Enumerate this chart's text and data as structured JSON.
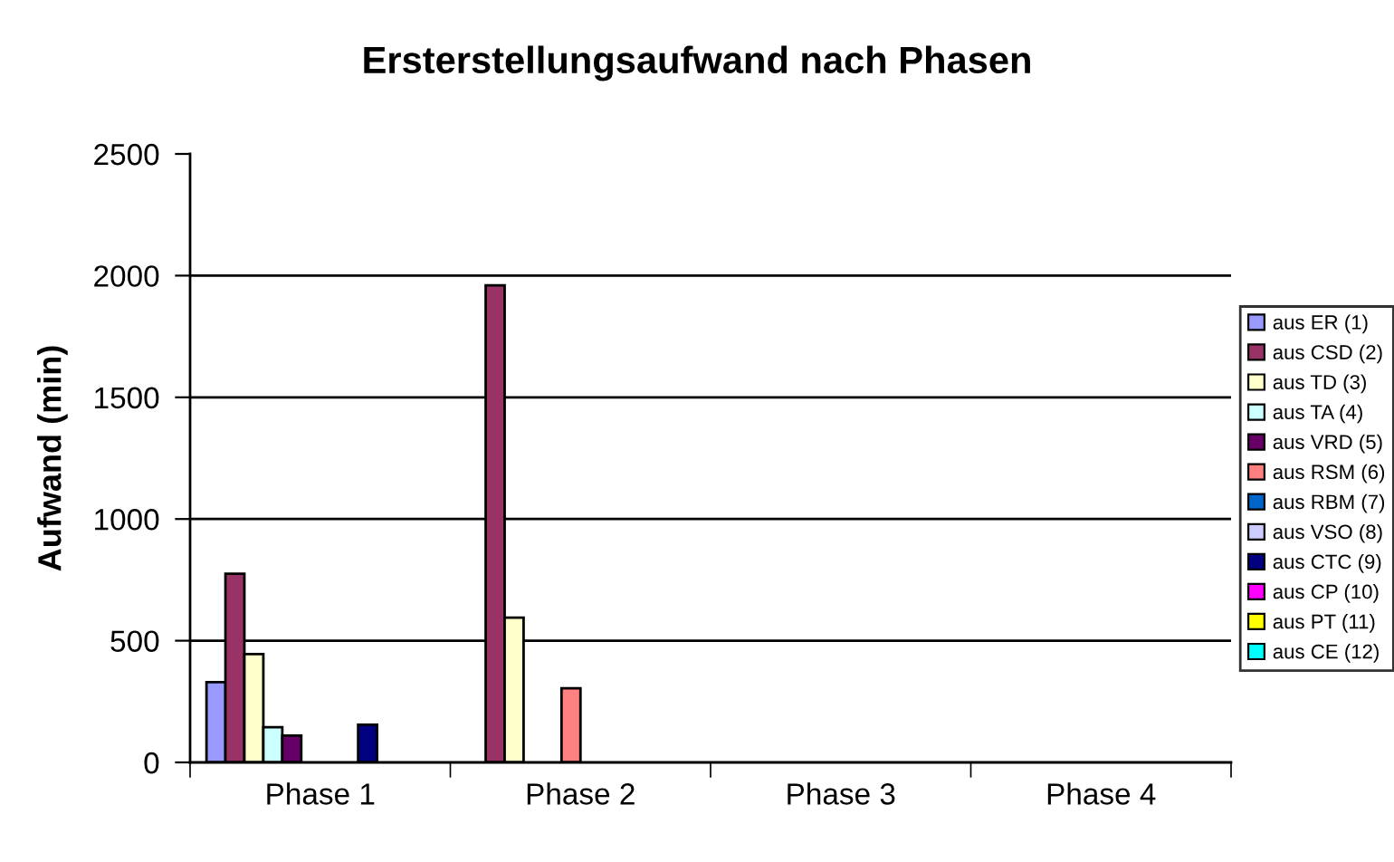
{
  "chart_data": {
    "type": "bar",
    "title": "Ersterstellungsaufwand nach Phasen",
    "ylabel": "Aufwand (min)",
    "categories": [
      "Phase 1",
      "Phase 2",
      "Phase 3",
      "Phase 4"
    ],
    "series": [
      {
        "name": "aus ER (1)",
        "color": "#9999ff",
        "values": [
          330,
          null,
          null,
          null
        ]
      },
      {
        "name": "aus CSD (2)",
        "color": "#993366",
        "values": [
          775,
          1960,
          null,
          null
        ]
      },
      {
        "name": "aus TD (3)",
        "color": "#ffffcc",
        "values": [
          445,
          595,
          null,
          null
        ]
      },
      {
        "name": "aus TA (4)",
        "color": "#ccffff",
        "values": [
          145,
          null,
          null,
          null
        ]
      },
      {
        "name": "aus VRD (5)",
        "color": "#660066",
        "values": [
          110,
          null,
          null,
          null
        ]
      },
      {
        "name": "aus RSM (6)",
        "color": "#ff8080",
        "values": [
          null,
          305,
          null,
          null
        ]
      },
      {
        "name": "aus RBM (7)",
        "color": "#0066cc",
        "values": [
          null,
          null,
          null,
          null
        ]
      },
      {
        "name": "aus VSO (8)",
        "color": "#ccccff",
        "values": [
          null,
          null,
          null,
          null
        ]
      },
      {
        "name": "aus CTC (9)",
        "color": "#000080",
        "values": [
          155,
          null,
          null,
          null
        ]
      },
      {
        "name": "aus CP (10)",
        "color": "#ff00ff",
        "values": [
          null,
          null,
          null,
          null
        ]
      },
      {
        "name": "aus PT (11)",
        "color": "#ffff00",
        "values": [
          null,
          null,
          null,
          null
        ]
      },
      {
        "name": "aus CE (12)",
        "color": "#00ffff",
        "values": [
          null,
          null,
          null,
          null
        ]
      }
    ],
    "ylim": [
      0,
      2500
    ],
    "yticks": [
      0,
      500,
      1000,
      1500,
      2000,
      2500
    ],
    "grid": "y",
    "legend": "right"
  }
}
